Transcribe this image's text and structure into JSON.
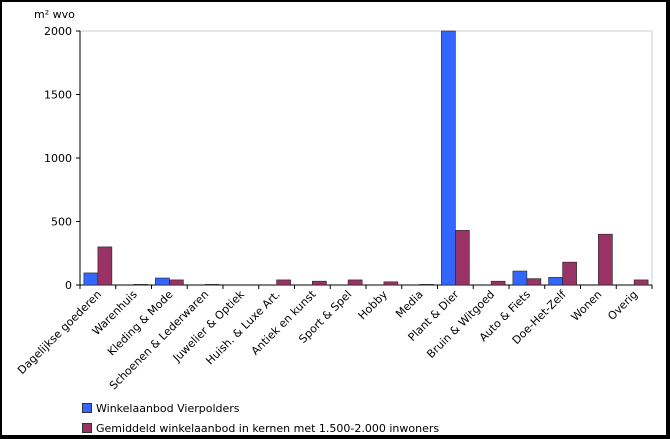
{
  "chart_data": {
    "type": "bar",
    "ylabel": "m² wvo",
    "ylim": [
      0,
      2000
    ],
    "yticks": [
      0,
      500,
      1000,
      1500,
      2000
    ],
    "grid": false,
    "legend_position": "bottom",
    "categories": [
      "Dagelijkse goederen",
      "Warenhuis",
      "Kleding & Mode",
      "Schoenen & Lederwaren",
      "Juwelier & Optiek",
      "Huish. & Luxe Art.",
      "Antiek en kunst",
      "Sport & Spel",
      "Hobby",
      "Media",
      "Plant & Dier",
      "Bruin & Witgoed",
      "Auto & Fiets",
      "Doe-Het-Zelf",
      "Wonen",
      "Overig"
    ],
    "series": [
      {
        "name": "Winkelaanbod Vierpolders",
        "color": "#3366ff",
        "values": [
          95,
          0,
          55,
          0,
          0,
          0,
          0,
          0,
          0,
          0,
          2000,
          0,
          110,
          60,
          0,
          0
        ]
      },
      {
        "name": "Gemiddeld winkelaanbod in kernen met 1.500-2.000 inwoners",
        "color": "#993366",
        "values": [
          300,
          5,
          40,
          5,
          0,
          40,
          30,
          40,
          25,
          5,
          430,
          30,
          50,
          180,
          400,
          40
        ]
      }
    ]
  }
}
